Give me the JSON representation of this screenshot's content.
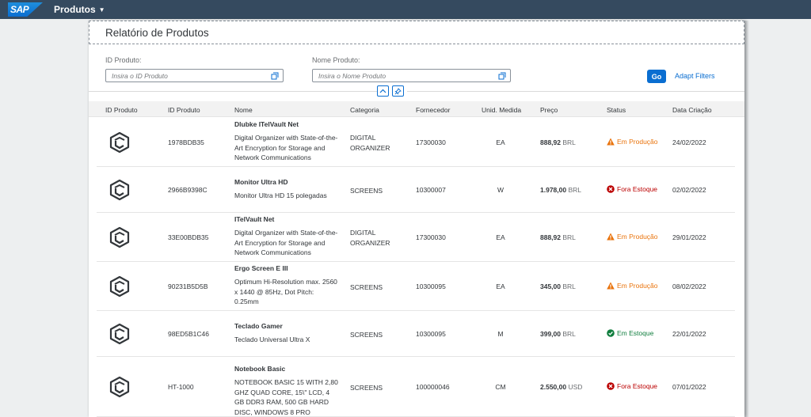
{
  "shell": {
    "logo": "SAP",
    "app_title": "Produtos"
  },
  "page": {
    "title": "Relatório de Produtos"
  },
  "filters": {
    "id": {
      "label": "ID Produto:",
      "placeholder": "Insira o ID Produto"
    },
    "name": {
      "label": "Nome Produto:",
      "placeholder": "Insira o Nome Produto"
    },
    "go_label": "Go",
    "adapt_label": "Adapt Filters"
  },
  "table": {
    "columns": [
      "ID Produto",
      "ID Produto",
      "Nome",
      "Categoria",
      "Fornecedor",
      "Unid. Medida",
      "Preço",
      "Status",
      "Data Criação"
    ],
    "rows": [
      {
        "id": "1978BDB35",
        "name": "Dlubke ITelVault Net",
        "desc": "Digital Organizer with State-of-the-Art Encryption for Storage and Network Communications",
        "category": "DIGITAL ORGANIZER",
        "supplier": "17300030",
        "unit": "EA",
        "price": "888,92",
        "currency": "BRL",
        "status": "Em Produção",
        "status_type": "warning",
        "date": "24/02/2022"
      },
      {
        "id": "2966B9398C",
        "name": "Monitor Ultra HD",
        "desc": "Monitor Ultra HD 15 polegadas",
        "category": "SCREENS",
        "supplier": "10300007",
        "unit": "W",
        "price": "1.978,00",
        "currency": "BRL",
        "status": "Fora Estoque",
        "status_type": "error",
        "date": "02/02/2022"
      },
      {
        "id": "33E00BDB35",
        "name": "ITelVault Net",
        "desc": "Digital Organizer with State-of-the-Art Encryption for Storage and Network Communications",
        "category": "DIGITAL ORGANIZER",
        "supplier": "17300030",
        "unit": "EA",
        "price": "888,92",
        "currency": "BRL",
        "status": "Em Produção",
        "status_type": "warning",
        "date": "29/01/2022"
      },
      {
        "id": "90231B5D5B",
        "name": "Ergo Screen E III",
        "desc": "Optimum Hi-Resolution max. 2560 x 1440 @ 85Hz, Dot Pitch: 0.25mm",
        "category": "SCREENS",
        "supplier": "10300095",
        "unit": "EA",
        "price": "345,00",
        "currency": "BRL",
        "status": "Em Produção",
        "status_type": "warning",
        "date": "08/02/2022"
      },
      {
        "id": "98ED5B1C46",
        "name": "Teclado Gamer",
        "desc": "Teclado Universal Ultra X",
        "category": "SCREENS",
        "supplier": "10300095",
        "unit": "M",
        "price": "399,00",
        "currency": "BRL",
        "status": "Em Estoque",
        "status_type": "success",
        "date": "22/01/2022"
      },
      {
        "id": "HT-1000",
        "name": "Notebook Basic",
        "desc": "NOTEBOOK BASIC 15 WITH 2,80 GHZ QUAD CORE, 15\\\" LCD, 4 GB DDR3 RAM, 500 GB HARD DISC, WINDOWS 8 PRO",
        "category": "SCREENS",
        "supplier": "100000046",
        "unit": "CM",
        "price": "2.550,00",
        "currency": "USD",
        "status": "Fora Estoque",
        "status_type": "error",
        "date": "07/01/2022"
      }
    ]
  },
  "icons": {
    "product": "cube-icon",
    "value_help": "value-help-icon",
    "collapse": "chevron-up-icon",
    "pin": "pin-icon"
  },
  "colors": {
    "shell": "#354a5f",
    "brand": "#0a6ed1",
    "warning": "#e9730c",
    "error": "#bb0000",
    "success": "#107e3e"
  }
}
